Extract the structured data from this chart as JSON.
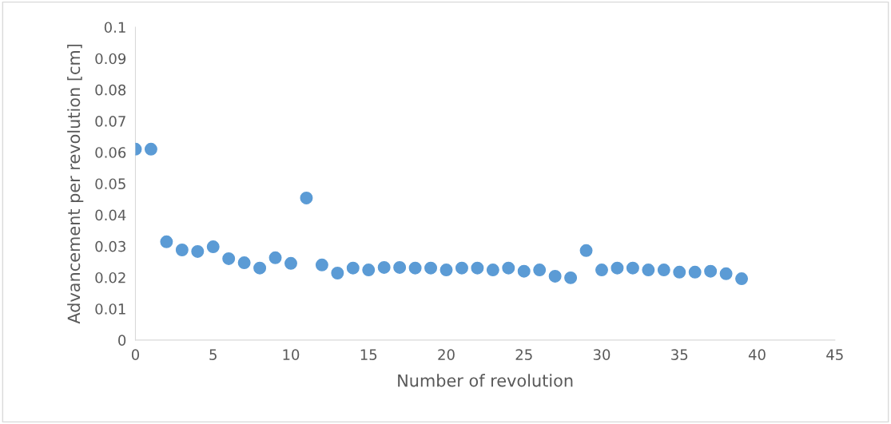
{
  "chart_data": {
    "type": "scatter",
    "xlabel": "Number of revolution",
    "ylabel": "Advancement per revolution [cm]",
    "x": [
      0,
      1,
      2,
      3,
      4,
      5,
      6,
      7,
      8,
      9,
      10,
      11,
      12,
      13,
      14,
      15,
      16,
      17,
      18,
      19,
      20,
      21,
      22,
      23,
      24,
      25,
      26,
      27,
      28,
      29,
      30,
      31,
      32,
      33,
      34,
      35,
      36,
      37,
      38,
      39
    ],
    "series": [
      {
        "color": "#5b9bd5",
        "values": [
          0.061,
          0.061,
          0.0314,
          0.0288,
          0.0283,
          0.0298,
          0.026,
          0.0247,
          0.023,
          0.0263,
          0.0245,
          0.0454,
          0.024,
          0.0214,
          0.023,
          0.0224,
          0.0232,
          0.0232,
          0.023,
          0.023,
          0.0224,
          0.023,
          0.023,
          0.0224,
          0.023,
          0.022,
          0.0224,
          0.0204,
          0.0199,
          0.0286,
          0.0224,
          0.023,
          0.023,
          0.0224,
          0.0224,
          0.0217,
          0.0217,
          0.022,
          0.0212,
          0.0196
        ]
      }
    ],
    "xlim": [
      0,
      45
    ],
    "xticks": [
      0,
      5,
      10,
      15,
      20,
      25,
      30,
      35,
      40,
      45
    ],
    "ylim": [
      0,
      0.1
    ],
    "yticks": [
      0,
      0.01,
      0.02,
      0.03,
      0.04,
      0.05,
      0.06,
      0.07,
      0.08,
      0.09,
      0.1
    ],
    "marker": "circle",
    "grid": false,
    "legend": false
  }
}
